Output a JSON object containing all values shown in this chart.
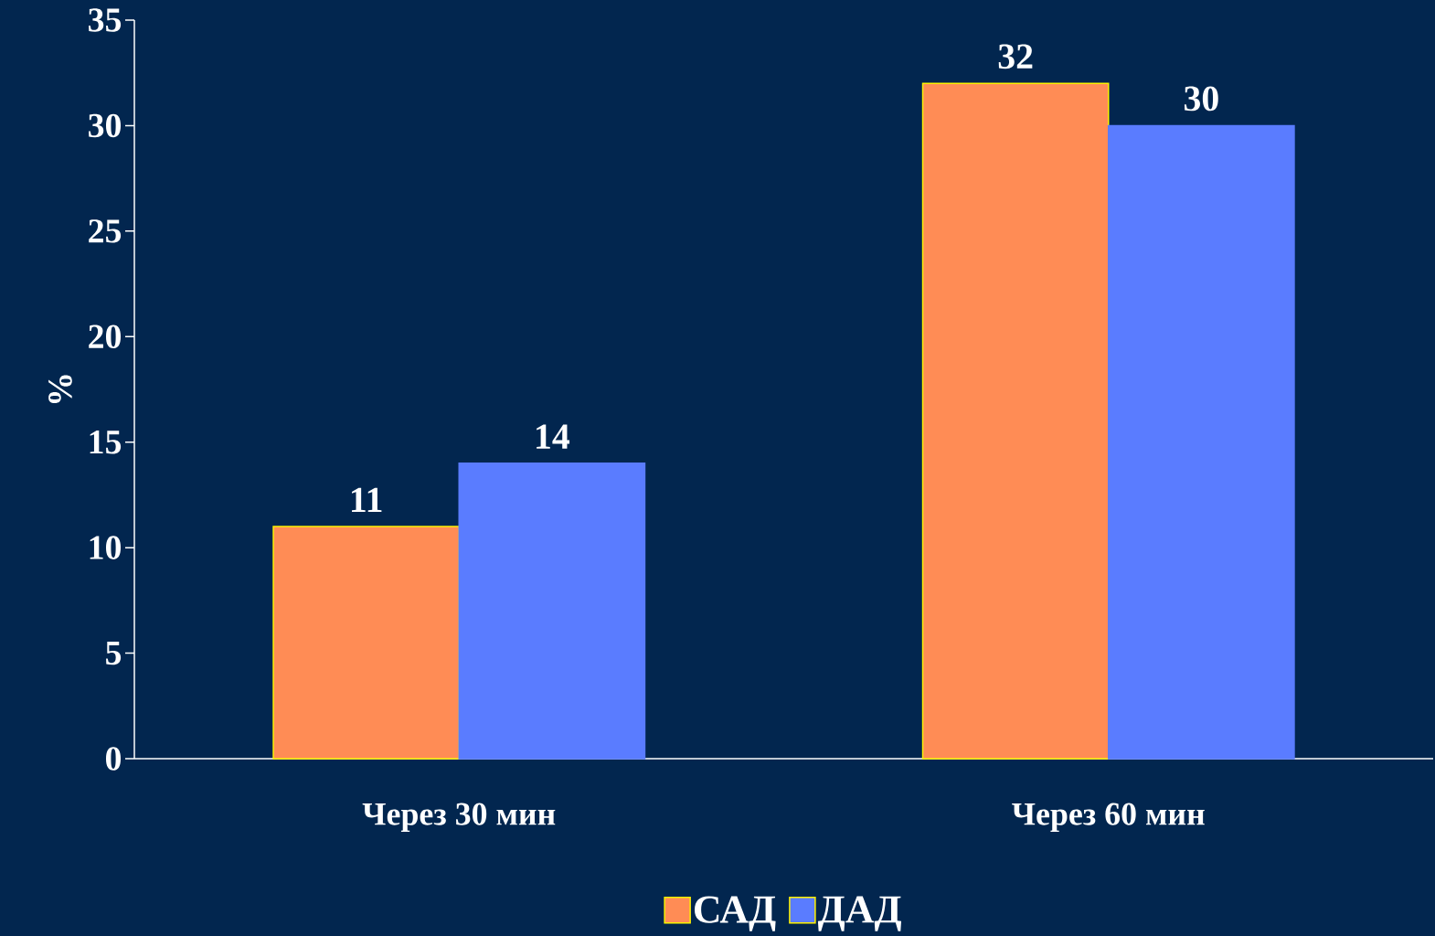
{
  "chart_data": {
    "type": "bar",
    "ylabel": "%",
    "categories": [
      "Через 30 мин",
      "Через 60 мин"
    ],
    "series": [
      {
        "name": "САД",
        "color": "#ff8c55",
        "values": [
          11,
          32
        ]
      },
      {
        "name": "ДАД",
        "color": "#5a7cff",
        "values": [
          14,
          30
        ]
      }
    ],
    "ylim": [
      0,
      35
    ],
    "yticks": [
      0,
      5,
      10,
      15,
      20,
      25,
      30,
      35
    ],
    "data_labels": true,
    "legend": "bottom",
    "grid": false
  }
}
